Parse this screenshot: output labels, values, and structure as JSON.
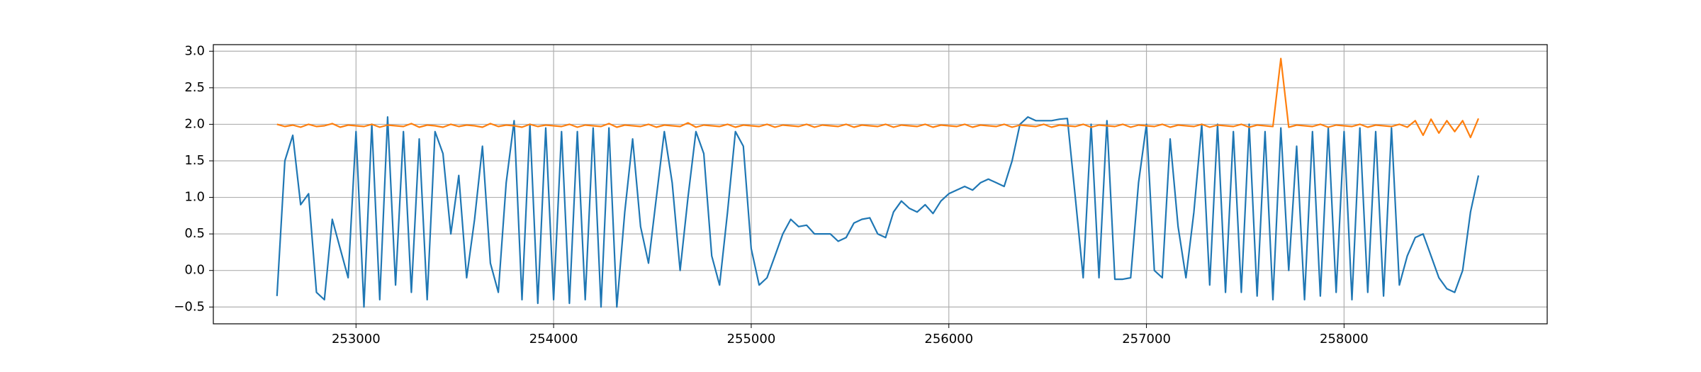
{
  "chart_data": {
    "type": "line",
    "x": [
      252600,
      252640,
      252680,
      252720,
      252760,
      252800,
      252840,
      252880,
      252920,
      252960,
      253000,
      253040,
      253080,
      253120,
      253160,
      253200,
      253240,
      253280,
      253320,
      253360,
      253400,
      253440,
      253480,
      253520,
      253560,
      253600,
      253640,
      253680,
      253720,
      253760,
      253800,
      253840,
      253880,
      253920,
      253960,
      254000,
      254040,
      254080,
      254120,
      254160,
      254200,
      254240,
      254280,
      254320,
      254360,
      254400,
      254440,
      254480,
      254520,
      254560,
      254600,
      254640,
      254680,
      254720,
      254760,
      254800,
      254840,
      254880,
      254920,
      254960,
      255000,
      255040,
      255080,
      255120,
      255160,
      255200,
      255240,
      255280,
      255320,
      255360,
      255400,
      255440,
      255480,
      255520,
      255560,
      255600,
      255640,
      255680,
      255720,
      255760,
      255800,
      255840,
      255880,
      255920,
      255960,
      256000,
      256040,
      256080,
      256120,
      256160,
      256200,
      256240,
      256280,
      256320,
      256360,
      256400,
      256440,
      256480,
      256520,
      256560,
      256600,
      256640,
      256680,
      256720,
      256760,
      256800,
      256840,
      256880,
      256920,
      256960,
      257000,
      257040,
      257080,
      257120,
      257160,
      257200,
      257240,
      257280,
      257320,
      257360,
      257400,
      257440,
      257480,
      257520,
      257560,
      257600,
      257640,
      257680,
      257720,
      257760,
      257800,
      257840,
      257880,
      257920,
      257960,
      258000,
      258040,
      258080,
      258120,
      258160,
      258200,
      258240,
      258280,
      258320,
      258360,
      258400,
      258440,
      258480,
      258520,
      258560,
      258600,
      258640,
      258680
    ],
    "series": [
      {
        "color": "#1f77b4",
        "values": [
          -0.35,
          1.5,
          1.85,
          0.9,
          1.05,
          -0.3,
          -0.4,
          0.7,
          0.3,
          -0.1,
          1.9,
          -0.5,
          2.0,
          -0.4,
          2.1,
          -0.2,
          1.9,
          -0.3,
          1.8,
          -0.4,
          1.9,
          1.6,
          0.5,
          1.3,
          -0.1,
          0.7,
          1.7,
          0.1,
          -0.3,
          1.2,
          2.05,
          -0.4,
          2.0,
          -0.45,
          1.95,
          -0.4,
          1.9,
          -0.45,
          1.9,
          -0.4,
          1.95,
          -0.5,
          1.95,
          -0.5,
          0.8,
          1.8,
          0.6,
          0.1,
          1.0,
          1.9,
          1.2,
          0.0,
          1.0,
          1.9,
          1.6,
          0.2,
          -0.2,
          0.8,
          1.9,
          1.7,
          0.3,
          -0.2,
          -0.1,
          0.2,
          0.5,
          0.7,
          0.6,
          0.62,
          0.5,
          0.5,
          0.5,
          0.4,
          0.45,
          0.65,
          0.7,
          0.72,
          0.5,
          0.45,
          0.8,
          0.95,
          0.85,
          0.8,
          0.9,
          0.78,
          0.95,
          1.05,
          1.1,
          1.15,
          1.1,
          1.2,
          1.25,
          1.2,
          1.15,
          1.5,
          2.0,
          2.1,
          2.05,
          2.05,
          2.05,
          2.07,
          2.08,
          1.0,
          -0.1,
          2.0,
          -0.1,
          2.05,
          -0.12,
          -0.12,
          -0.1,
          1.2,
          2.0,
          0.0,
          -0.1,
          1.8,
          0.6,
          -0.1,
          0.8,
          2.0,
          -0.2,
          2.0,
          -0.3,
          1.9,
          -0.3,
          2.0,
          -0.35,
          1.9,
          -0.4,
          1.95,
          0.0,
          1.7,
          -0.4,
          1.9,
          -0.35,
          1.95,
          -0.3,
          1.9,
          -0.4,
          1.95,
          -0.3,
          1.9,
          -0.35,
          1.95,
          -0.2,
          0.2,
          0.45,
          0.5,
          0.2,
          -0.1,
          -0.25,
          -0.3,
          0.0,
          0.8,
          1.3
        ]
      },
      {
        "color": "#ff7f0e",
        "values": [
          2.0,
          1.97,
          1.99,
          1.96,
          2.0,
          1.97,
          1.98,
          2.01,
          1.96,
          1.99,
          1.98,
          1.97,
          2.0,
          1.96,
          1.99,
          1.98,
          1.97,
          2.01,
          1.96,
          1.99,
          1.98,
          1.96,
          2.0,
          1.97,
          1.99,
          1.98,
          1.96,
          2.01,
          1.97,
          1.99,
          1.98,
          1.96,
          2.0,
          1.97,
          1.99,
          1.98,
          1.97,
          2.0,
          1.96,
          1.99,
          1.98,
          1.97,
          2.01,
          1.96,
          1.99,
          1.98,
          1.97,
          2.0,
          1.96,
          1.99,
          1.98,
          1.97,
          2.02,
          1.96,
          1.99,
          1.98,
          1.97,
          2.0,
          1.96,
          1.99,
          1.98,
          1.97,
          2.0,
          1.96,
          1.99,
          1.98,
          1.97,
          2.0,
          1.96,
          1.99,
          1.98,
          1.97,
          2.0,
          1.96,
          1.99,
          1.98,
          1.97,
          2.0,
          1.96,
          1.99,
          1.98,
          1.97,
          2.0,
          1.96,
          1.99,
          1.98,
          1.97,
          2.0,
          1.96,
          1.99,
          1.98,
          1.97,
          2.0,
          1.96,
          1.99,
          1.98,
          1.97,
          2.0,
          1.96,
          1.99,
          1.98,
          1.97,
          2.0,
          1.96,
          1.99,
          1.98,
          1.97,
          2.0,
          1.96,
          1.99,
          1.98,
          1.97,
          2.0,
          1.96,
          1.99,
          1.98,
          1.97,
          2.0,
          1.96,
          1.99,
          1.98,
          1.97,
          2.0,
          1.96,
          1.99,
          1.98,
          1.97,
          2.9,
          1.96,
          1.99,
          1.98,
          1.97,
          2.0,
          1.96,
          1.99,
          1.98,
          1.97,
          2.0,
          1.96,
          1.99,
          1.98,
          1.97,
          2.0,
          1.96,
          2.05,
          1.85,
          2.07,
          1.88,
          2.05,
          1.9,
          2.05,
          1.82,
          2.08
        ]
      }
    ],
    "xlim": [
      252278,
      259028
    ],
    "ylim": [
      -0.73,
      3.09
    ],
    "xticks": [
      253000,
      254000,
      255000,
      256000,
      257000,
      258000
    ],
    "yticks": [
      {
        "value": -0.5,
        "label": "−0.5"
      },
      {
        "value": 0,
        "label": "0.0"
      },
      0.5,
      {
        "value": 1,
        "label": "1.0"
      },
      1.5,
      {
        "value": 2,
        "label": "2.0"
      },
      2.5,
      {
        "value": 3,
        "label": "3.0"
      }
    ],
    "grid": true
  }
}
